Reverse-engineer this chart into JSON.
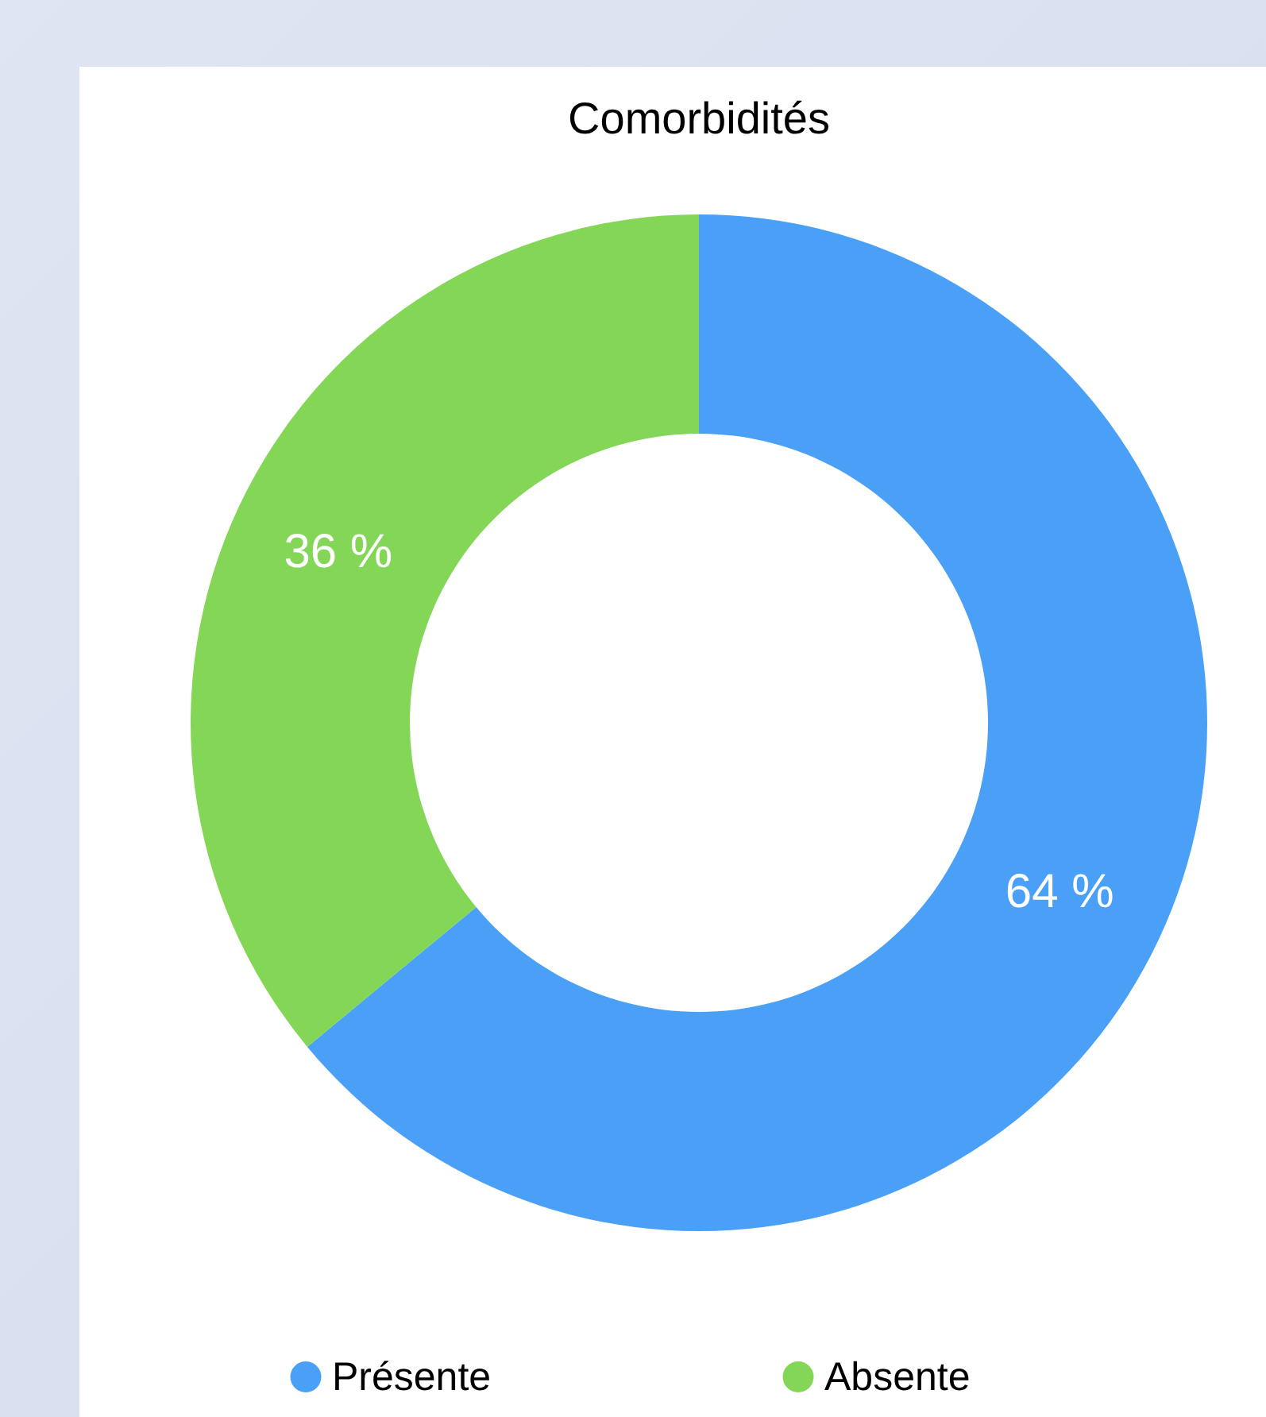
{
  "chart_data": {
    "type": "donut",
    "title": "Comorbidités",
    "categories": [
      "Présente",
      "Absente"
    ],
    "values": [
      64,
      36
    ],
    "value_labels": [
      "64 %",
      "36 %"
    ],
    "colors": [
      "#4a9ff7",
      "#84d657"
    ],
    "legend": "bottom"
  }
}
